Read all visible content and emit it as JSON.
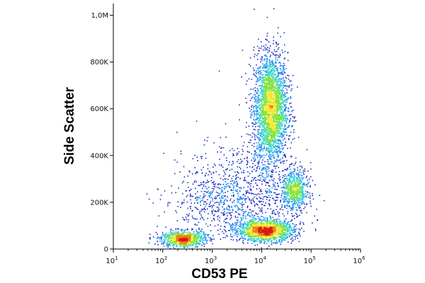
{
  "chart_data": {
    "type": "scatter",
    "title": "",
    "xlabel": "CD53 PE",
    "ylabel": "Side Scatter",
    "x_scale": "log",
    "xlim": [
      10,
      1000000
    ],
    "ylim": [
      0,
      1050000
    ],
    "x_ticks": [
      {
        "value": 10,
        "base": "10",
        "exp": "1"
      },
      {
        "value": 100,
        "base": "10",
        "exp": "2"
      },
      {
        "value": 1000,
        "base": "10",
        "exp": "3"
      },
      {
        "value": 10000,
        "base": "10",
        "exp": "4"
      },
      {
        "value": 100000,
        "base": "10",
        "exp": "5"
      },
      {
        "value": 1000000,
        "base": "10",
        "exp": "6"
      }
    ],
    "y_ticks": [
      {
        "value": 0,
        "label": "0"
      },
      {
        "value": 200000,
        "label": "200K"
      },
      {
        "value": 400000,
        "label": "400K"
      },
      {
        "value": 600000,
        "label": "600K"
      },
      {
        "value": 800000,
        "label": "800K"
      },
      {
        "value": 1000000,
        "label": "1,0M"
      }
    ],
    "color_scale": [
      "#1c2fc4",
      "#1f8ef0",
      "#35d4c8",
      "#7de23c",
      "#f2e82a",
      "#f07a18",
      "#d81a10"
    ],
    "populations": [
      {
        "x_center": 15000,
        "y_center": 600000,
        "n": 2800
      },
      {
        "x_center": 45000,
        "y_center": 250000,
        "n": 700
      },
      {
        "x_center": 12000,
        "y_center": 80000,
        "n": 1500
      },
      {
        "x_center": 250,
        "y_center": 45000,
        "n": 900
      },
      {
        "x_center": 3000,
        "y_center": 200000,
        "n": 1100
      }
    ],
    "grid": false,
    "legend": "none"
  }
}
